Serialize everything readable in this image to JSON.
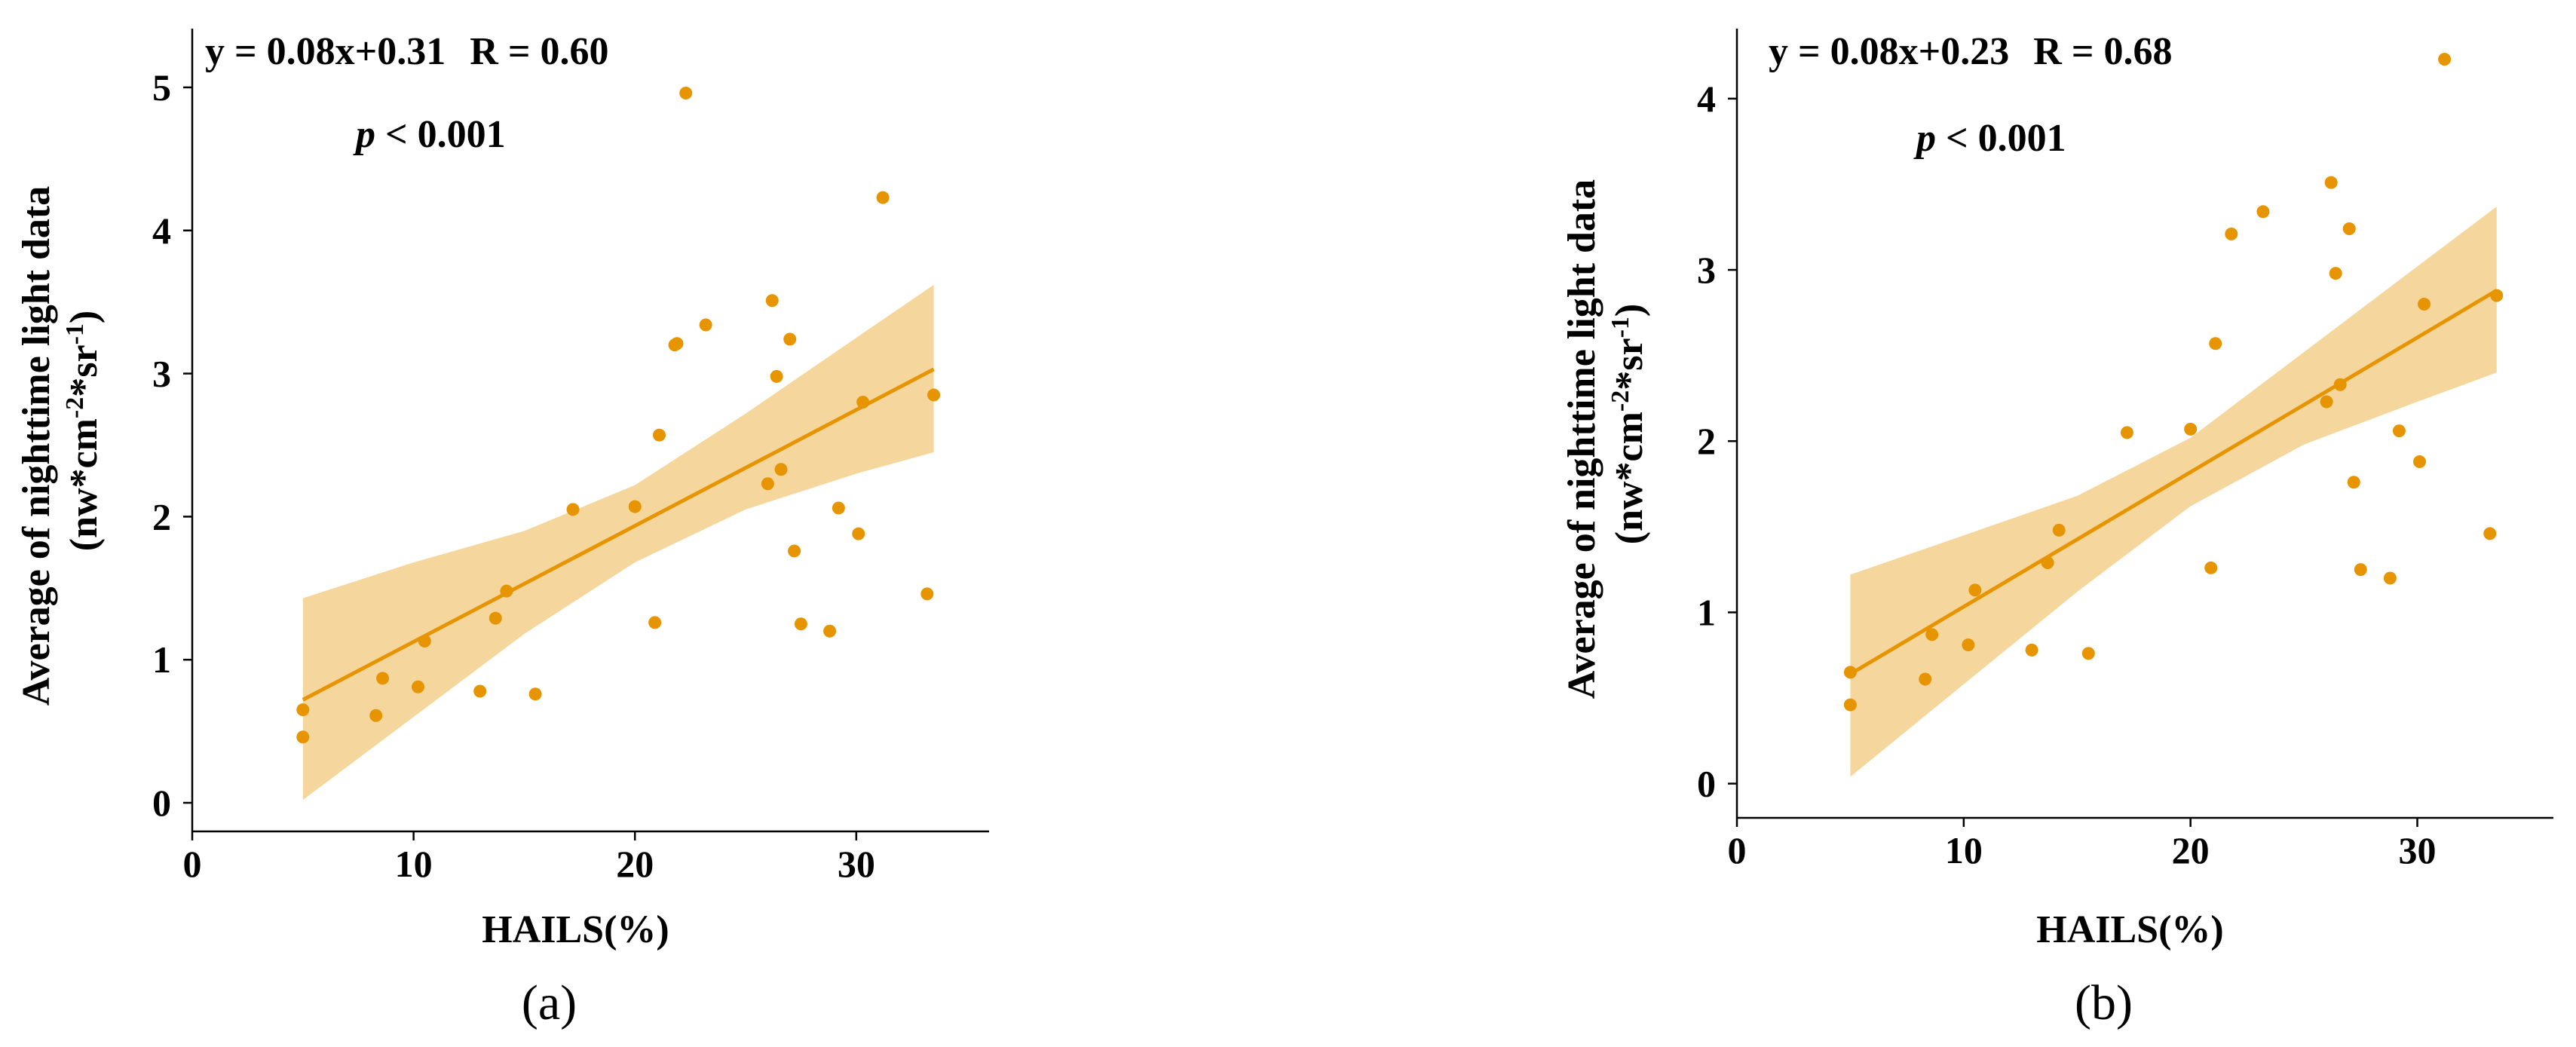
{
  "colors": {
    "accent": "#E69500",
    "band": "#F5D79E",
    "axis": "#000000"
  },
  "chart_data": [
    {
      "type": "scatter",
      "panel_label": "(a)",
      "xlabel": "HAILS(%)",
      "ylabel": "Average of nighttime light data",
      "ylabel_units": {
        "base": "(nw*cm",
        "exp1": "-2",
        "mid": "*sr",
        "exp2": "-1",
        "end": ")"
      },
      "xlim": [
        0,
        36
      ],
      "ylim": [
        -0.2,
        5.4
      ],
      "xticks": [
        0,
        10,
        20,
        30
      ],
      "yticks": [
        0,
        1,
        2,
        3,
        4,
        5
      ],
      "equation": "y = 0.08x+0.31",
      "r_text": "R = 0.60",
      "p_prefix": "p",
      "p_suffix": " < 0.001",
      "fit": {
        "x": [
          5.0,
          33.5
        ],
        "y": [
          0.72,
          3.03
        ]
      },
      "ci_band": {
        "x": [
          5.0,
          10.0,
          15.0,
          20.0,
          25.0,
          30.0,
          33.5
        ],
        "lower": [
          0.02,
          0.6,
          1.18,
          1.68,
          2.05,
          2.3,
          2.45
        ],
        "upper": [
          1.43,
          1.68,
          1.9,
          2.22,
          2.72,
          3.25,
          3.62
        ]
      },
      "points": {
        "x": [
          5.0,
          5.0,
          8.3,
          8.6,
          10.2,
          10.5,
          13.0,
          13.7,
          14.2,
          15.5,
          17.2,
          20.0,
          20.9,
          21.1,
          21.8,
          21.9,
          22.3,
          23.2,
          26.0,
          26.2,
          26.4,
          26.6,
          27.0,
          27.2,
          27.5,
          28.8,
          29.2,
          30.1,
          30.3,
          31.2,
          33.2,
          33.5
        ],
        "y": [
          0.46,
          0.65,
          0.61,
          0.87,
          0.81,
          1.13,
          0.78,
          1.29,
          1.48,
          0.76,
          2.05,
          2.07,
          1.26,
          2.57,
          3.2,
          3.21,
          4.96,
          3.34,
          2.23,
          3.51,
          2.98,
          2.33,
          3.24,
          1.76,
          1.25,
          1.2,
          2.06,
          1.88,
          2.8,
          4.23,
          1.46,
          2.85
        ]
      }
    },
    {
      "type": "scatter",
      "panel_label": "(b)",
      "xlabel": "HAILS(%)",
      "ylabel": "Average of nighttime light data",
      "ylabel_units": {
        "base": "(nw*cm",
        "exp1": "-2",
        "mid": "*sr",
        "exp2": "-1",
        "end": ")"
      },
      "xlim": [
        0,
        36
      ],
      "ylim": [
        -0.2,
        4.4
      ],
      "xticks": [
        0,
        10,
        20,
        30
      ],
      "yticks": [
        0,
        1,
        2,
        3,
        4
      ],
      "equation": "y = 0.08x+0.23",
      "r_text": "R = 0.68",
      "p_prefix": "p",
      "p_suffix": " < 0.001",
      "fit": {
        "x": [
          5.0,
          33.5
        ],
        "y": [
          0.64,
          2.88
        ]
      },
      "ci_band": {
        "x": [
          5.0,
          10.0,
          15.0,
          20.0,
          25.0,
          30.0,
          33.5
        ],
        "lower": [
          0.04,
          0.58,
          1.12,
          1.62,
          1.98,
          2.23,
          2.4
        ],
        "upper": [
          1.22,
          1.45,
          1.68,
          2.02,
          2.52,
          3.02,
          3.37
        ]
      },
      "points": {
        "x": [
          5.0,
          5.0,
          8.3,
          8.6,
          10.2,
          10.5,
          13.0,
          13.7,
          14.2,
          15.5,
          17.2,
          20.0,
          20.9,
          21.1,
          21.8,
          23.2,
          26.0,
          26.2,
          26.4,
          26.6,
          27.0,
          27.2,
          27.5,
          28.8,
          29.2,
          30.1,
          30.3,
          31.2,
          33.2,
          33.5
        ],
        "y": [
          0.46,
          0.65,
          0.61,
          0.87,
          0.81,
          1.13,
          0.78,
          1.29,
          1.48,
          0.76,
          2.05,
          2.07,
          1.26,
          2.57,
          3.21,
          3.34,
          2.23,
          3.51,
          2.98,
          2.33,
          3.24,
          1.76,
          1.25,
          1.2,
          2.06,
          1.88,
          2.8,
          4.23,
          1.46,
          2.85
        ]
      }
    }
  ]
}
